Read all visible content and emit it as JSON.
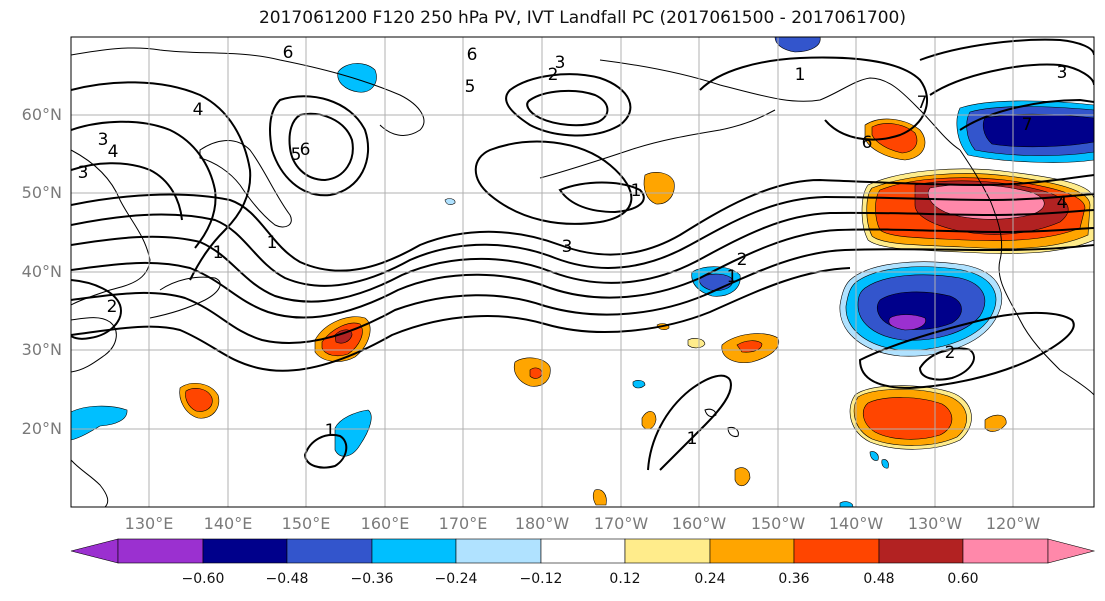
{
  "title": "2017061200 F120 250 hPa PV, IVT Landfall PC (2017061500 - 2017061700)",
  "lat_labels": [
    "60°N",
    "50°N",
    "40°N",
    "30°N",
    "20°N"
  ],
  "lon_labels": [
    "130°E",
    "140°E",
    "150°E",
    "160°E",
    "170°E",
    "180°W",
    "170°W",
    "160°W",
    "150°W",
    "140°W",
    "130°W",
    "120°W"
  ],
  "colorbar": {
    "ticks": [
      "−0.60",
      "−0.48",
      "−0.36",
      "−0.24",
      "−0.12",
      "0.12",
      "0.24",
      "0.36",
      "0.48",
      "0.60"
    ],
    "colors": [
      "#9b30d0",
      "#00008b",
      "#3355cc",
      "#00bfff",
      "#b0e2ff",
      "#ffffff",
      "#ffec8b",
      "#ffa500",
      "#ff4500",
      "#b22222",
      "#ff88aa"
    ]
  },
  "contour_labels": [
    "6",
    "6",
    "4",
    "3",
    "4",
    "3",
    "5",
    "5",
    "6",
    "3",
    "2",
    "1",
    "1",
    "7",
    "6",
    "7",
    "3",
    "4",
    "1",
    "3",
    "2",
    "1",
    "2",
    "1",
    "1",
    "2",
    "1"
  ]
}
